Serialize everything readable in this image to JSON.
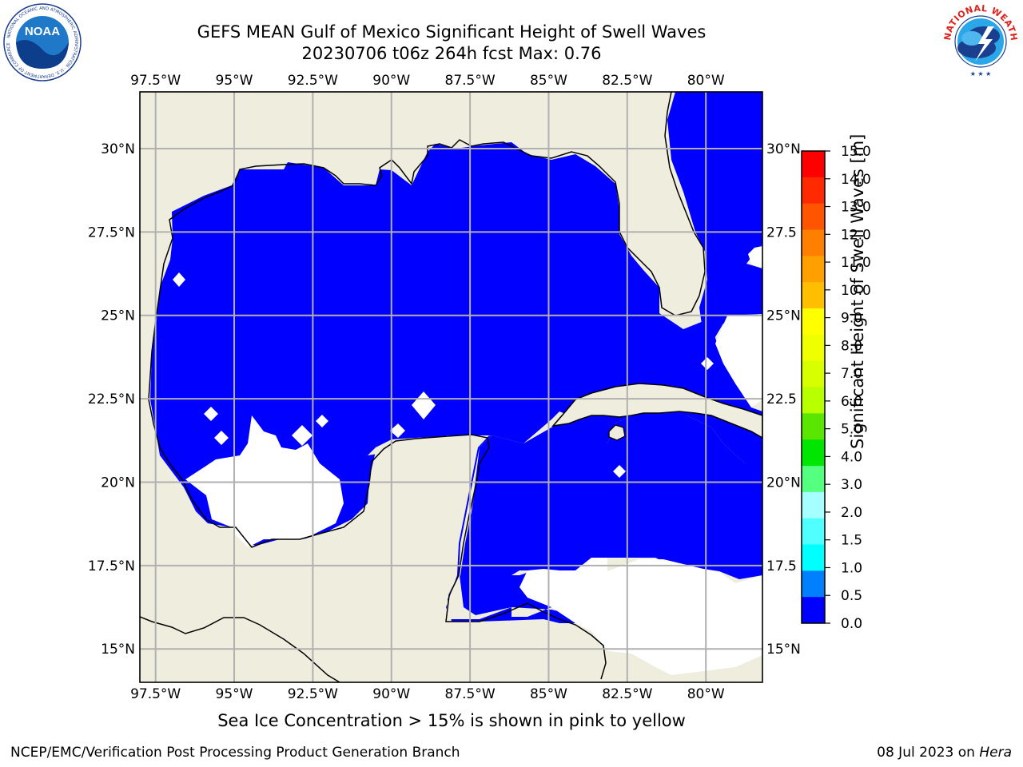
{
  "header": {
    "title_line1": "GEFS MEAN Gulf of Mexico Significant Height of Swell Waves",
    "title_line2": "20230706 t06z 264h fcst   Max: 0.76"
  },
  "logos": {
    "left": {
      "text": "NOAA",
      "ring_text": "NATIONAL OCEANIC AND ATMOSPHERIC ADMINISTRATION · U.S. DEPARTMENT OF COMMERCE",
      "icon": "noaa-logo-icon"
    },
    "right": {
      "ring_text": "NATIONAL WEATHER SERVICE",
      "icon": "nws-logo-icon"
    }
  },
  "map": {
    "lon_labels": [
      "97.5°W",
      "95°W",
      "92.5°W",
      "90°W",
      "87.5°W",
      "85°W",
      "82.5°W",
      "80°W"
    ],
    "lon_values": [
      -97.5,
      -95,
      -92.5,
      -90,
      -87.5,
      -85,
      -82.5,
      -80
    ],
    "lat_labels": [
      "30°N",
      "27.5°N",
      "25°N",
      "22.5°N",
      "20°N",
      "17.5°N",
      "15°N"
    ],
    "lat_values": [
      30,
      27.5,
      25,
      22.5,
      20,
      17.5,
      15
    ],
    "right_lat_labels": [
      "30°N",
      "27.5",
      "25°N",
      "22.5",
      "20°N",
      "17.5",
      "15°N"
    ],
    "lon_range": [
      -98,
      -78.2
    ],
    "lat_range": [
      14,
      31.7
    ],
    "colors": {
      "land": "#efeddd",
      "ocean_low": "#0000ff",
      "ocean_mid": "#0080ff",
      "gridline": "#b0b0b0"
    }
  },
  "colorbar": {
    "label": "Significant Height of Swell Waves [m]",
    "ticks": [
      "15.0",
      "14.0",
      "13.0",
      "12.0",
      "11.0",
      "10.0",
      "9.0",
      "8.0",
      "7.0",
      "6.0",
      "5.0",
      "4.0",
      "3.0",
      "2.0",
      "1.5",
      "1.0",
      "0.5",
      "0.0"
    ],
    "colors_top_to_bottom": [
      "#ff0000",
      "#ff2a00",
      "#ff5500",
      "#ff8000",
      "#ff9f00",
      "#ffbf00",
      "#ffff00",
      "#f0ff00",
      "#d8ff00",
      "#b8ff00",
      "#5ae600",
      "#00e600",
      "#55ff7f",
      "#a6ffff",
      "#50ffff",
      "#00ffff",
      "#0080ff",
      "#0000ff"
    ]
  },
  "note": "Sea Ice Concentration > 15% is shown in pink to yellow",
  "footer": {
    "left": "NCEP/EMC/Verification Post Processing Product Generation Branch",
    "right_date": "08 Jul 2023 on ",
    "right_machine": "Hera"
  }
}
